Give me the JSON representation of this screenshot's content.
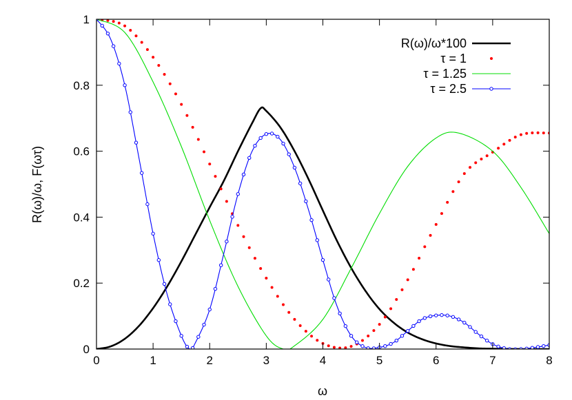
{
  "chart_data": {
    "type": "line",
    "title": "",
    "xlabel": "ω",
    "ylabel": "R(ω)/ω, F(ωτ)",
    "xlim": [
      0,
      8
    ],
    "ylim": [
      0,
      1
    ],
    "xticks": [
      "0",
      "1",
      "2",
      "3",
      "4",
      "5",
      "6",
      "7",
      "8"
    ],
    "yticks": [
      "0",
      "0.2",
      "0.4",
      "0.6",
      "0.8",
      "1"
    ],
    "grid": false,
    "legend_position": "top-right",
    "series": [
      {
        "name": "R(ω)/ω*100",
        "style": "line",
        "color": "#000000",
        "x": [
          0,
          0.25,
          0.5,
          0.75,
          1.0,
          1.25,
          1.5,
          1.75,
          2.0,
          2.25,
          2.5,
          2.75,
          2.9,
          3.0,
          3.25,
          3.5,
          3.75,
          4.0,
          4.25,
          4.5,
          4.75,
          5.0,
          5.25,
          5.5,
          5.75,
          6.0,
          6.25,
          6.5,
          6.75,
          7.0,
          7.5,
          8.0
        ],
        "y": [
          0,
          0.008,
          0.031,
          0.07,
          0.124,
          0.19,
          0.266,
          0.348,
          0.43,
          0.51,
          0.6,
          0.685,
          0.73,
          0.722,
          0.672,
          0.6,
          0.514,
          0.42,
          0.328,
          0.246,
          0.177,
          0.121,
          0.08,
          0.05,
          0.03,
          0.017,
          0.009,
          0.005,
          0.002,
          0.001,
          0.0,
          0.0
        ]
      },
      {
        "name": "τ = 1",
        "style": "points",
        "color": "#ff0000",
        "x": [
          0,
          0.5,
          1.0,
          1.5,
          2.0,
          2.5,
          3.0,
          3.5,
          4.0,
          4.5,
          5.0,
          5.5,
          6.0,
          6.5,
          7.0,
          7.5,
          8.0
        ],
        "y": [
          1.0,
          0.98,
          0.885,
          0.742,
          0.561,
          0.375,
          0.215,
          0.09,
          0.017,
          0.008,
          0.075,
          0.21,
          0.378,
          0.532,
          0.597,
          0.65,
          0.655
        ]
      },
      {
        "name": "τ = 1.25",
        "style": "line",
        "color": "#00dd00",
        "x": [
          0,
          0.5,
          1.0,
          1.5,
          2.0,
          2.5,
          3.0,
          3.3,
          3.5,
          4.0,
          4.5,
          5.0,
          5.5,
          6.0,
          6.4,
          7.0,
          7.5,
          8.0
        ],
        "y": [
          1.0,
          0.96,
          0.81,
          0.614,
          0.39,
          0.19,
          0.04,
          0.0,
          0.01,
          0.09,
          0.245,
          0.411,
          0.554,
          0.64,
          0.655,
          0.6,
          0.49,
          0.35
        ]
      },
      {
        "name": "τ = 2.5",
        "style": "linespoints",
        "color": "#0000ff",
        "x": [
          0,
          0.25,
          0.5,
          0.75,
          1.0,
          1.25,
          1.5,
          1.65,
          1.75,
          2.0,
          2.25,
          2.5,
          2.75,
          3.0,
          3.25,
          3.5,
          3.75,
          4.0,
          4.25,
          4.5,
          4.75,
          5.0,
          5.25,
          5.5,
          5.75,
          6.0,
          6.25,
          6.5,
          6.75,
          7.0,
          7.25,
          7.5,
          7.75,
          8.0
        ],
        "y": [
          1.0,
          0.94,
          0.8,
          0.58,
          0.35,
          0.165,
          0.04,
          0.0,
          0.02,
          0.12,
          0.29,
          0.47,
          0.6,
          0.652,
          0.635,
          0.55,
          0.42,
          0.27,
          0.13,
          0.04,
          0.005,
          0.005,
          0.02,
          0.055,
          0.09,
          0.102,
          0.1,
          0.08,
          0.045,
          0.015,
          0.001,
          0.0,
          0.005,
          0.012
        ]
      }
    ]
  }
}
